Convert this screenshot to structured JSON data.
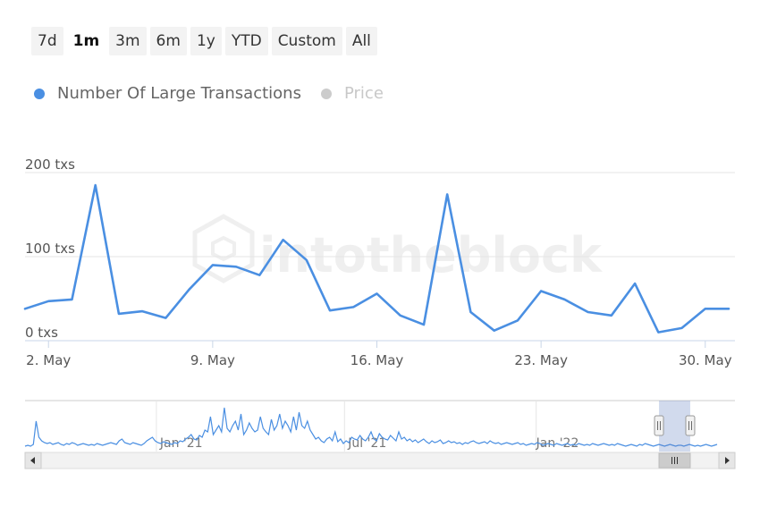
{
  "toolbar": {
    "buttons": [
      {
        "label": "7d",
        "active": false
      },
      {
        "label": "1m",
        "active": true
      },
      {
        "label": "3m",
        "active": false
      },
      {
        "label": "6m",
        "active": false
      },
      {
        "label": "1y",
        "active": false
      },
      {
        "label": "YTD",
        "active": false
      },
      {
        "label": "Custom",
        "active": false
      },
      {
        "label": "All",
        "active": false
      }
    ]
  },
  "legend": {
    "items": [
      {
        "label": "Number Of Large Transactions",
        "color": "#4a8fe2",
        "active": true
      },
      {
        "label": "Price",
        "color": "#cccccc",
        "active": false
      }
    ]
  },
  "watermark": "intotheblock",
  "chart_data": {
    "type": "line",
    "series": [
      {
        "name": "Number Of Large Transactions",
        "color": "#4a8fe2",
        "x": [
          "2021-05-01",
          "2021-05-02",
          "2021-05-03",
          "2021-05-04",
          "2021-05-05",
          "2021-05-06",
          "2021-05-07",
          "2021-05-08",
          "2021-05-09",
          "2021-05-10",
          "2021-05-11",
          "2021-05-12",
          "2021-05-13",
          "2021-05-14",
          "2021-05-15",
          "2021-05-16",
          "2021-05-17",
          "2021-05-18",
          "2021-05-19",
          "2021-05-20",
          "2021-05-21",
          "2021-05-22",
          "2021-05-23",
          "2021-05-24",
          "2021-05-25",
          "2021-05-26",
          "2021-05-27",
          "2021-05-28",
          "2021-05-29",
          "2021-05-30",
          "2021-05-31"
        ],
        "values": [
          38,
          47,
          49,
          185,
          32,
          35,
          27,
          61,
          90,
          88,
          78,
          120,
          96,
          36,
          40,
          56,
          30,
          19,
          174,
          34,
          12,
          24,
          59,
          49,
          34,
          30,
          68,
          10,
          15,
          38,
          38
        ]
      }
    ],
    "y_ticks": [
      "0 txs",
      "100 txs",
      "200 txs"
    ],
    "y_tick_values": [
      0,
      100,
      200
    ],
    "ylim": [
      0,
      200
    ],
    "x_ticks": [
      "2. May",
      "9. May",
      "16. May",
      "23. May",
      "30. May"
    ],
    "x_tick_dates": [
      "2021-05-02",
      "2021-05-09",
      "2021-05-16",
      "2021-05-23",
      "2021-05-30"
    ],
    "grid": true,
    "legend_position": "top-left",
    "navigator": {
      "labels": [
        "Jan '21",
        "Jul '21",
        "Jan '22"
      ],
      "overview_values": [
        2,
        3,
        2,
        4,
        30,
        12,
        8,
        6,
        5,
        6,
        4,
        5,
        6,
        4,
        3,
        5,
        4,
        6,
        5,
        3,
        4,
        5,
        4,
        3,
        4,
        3,
        5,
        4,
        3,
        4,
        5,
        6,
        5,
        4,
        8,
        10,
        6,
        5,
        4,
        6,
        5,
        4,
        3,
        5,
        8,
        10,
        12,
        8,
        6,
        5,
        7,
        6,
        5,
        4,
        6,
        5,
        8,
        7,
        10,
        12,
        15,
        10,
        9,
        14,
        12,
        20,
        18,
        35,
        15,
        20,
        25,
        18,
        45,
        22,
        18,
        25,
        30,
        20,
        38,
        15,
        20,
        28,
        22,
        18,
        20,
        35,
        22,
        18,
        15,
        32,
        20,
        25,
        38,
        22,
        30,
        25,
        18,
        35,
        20,
        40,
        25,
        22,
        30,
        20,
        15,
        10,
        12,
        8,
        6,
        10,
        12,
        8,
        18,
        7,
        10,
        5,
        8,
        6,
        12,
        10,
        9,
        14,
        10,
        8,
        12,
        18,
        10,
        8,
        16,
        12,
        10,
        9,
        14,
        11,
        8,
        18,
        10,
        12,
        8,
        10,
        7,
        9,
        6,
        8,
        10,
        7,
        5,
        8,
        6,
        7,
        9,
        5,
        6,
        8,
        6,
        7,
        5,
        6,
        4,
        6,
        5,
        7,
        8,
        6,
        5,
        6,
        7,
        5,
        8,
        6,
        5,
        6,
        4,
        5,
        6,
        5,
        4,
        5,
        6,
        4,
        5,
        3,
        4,
        5,
        4,
        6,
        5,
        3,
        4,
        5,
        4,
        3,
        5,
        4,
        3,
        4,
        5,
        3,
        4,
        3,
        5,
        4,
        3,
        4,
        3,
        5,
        4,
        3,
        4,
        5,
        4,
        3,
        4,
        3,
        5,
        4,
        3,
        2,
        3,
        4,
        3,
        2,
        4,
        3,
        5,
        4,
        3,
        2,
        3,
        4,
        3,
        2,
        3,
        4,
        3,
        2,
        3,
        3,
        2,
        3,
        4,
        3,
        2,
        3,
        2,
        3,
        4,
        3,
        2,
        3,
        4
      ],
      "selection_start": 0.893,
      "selection_end": 0.937
    }
  }
}
